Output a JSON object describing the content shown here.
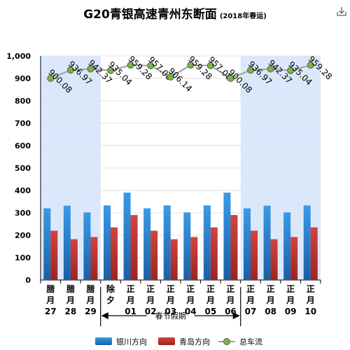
{
  "title": "G20青银高速青州东断面",
  "subtitle": "(2018年春运)",
  "chart_data": {
    "type": "bar",
    "categories": [
      [
        "腊",
        "月",
        "27"
      ],
      [
        "腊",
        "月",
        "28"
      ],
      [
        "腊",
        "月",
        "29"
      ],
      [
        "除",
        "夕"
      ],
      [
        "正",
        "月",
        "01"
      ],
      [
        "正",
        "月",
        "02"
      ],
      [
        "正",
        "月",
        "03"
      ],
      [
        "正",
        "月",
        "04"
      ],
      [
        "正",
        "月",
        "05"
      ],
      [
        "正",
        "月",
        "06"
      ],
      [
        "正",
        "月",
        "07"
      ],
      [
        "正",
        "月",
        "08"
      ],
      [
        "正",
        "月",
        "09"
      ],
      [
        "正",
        "月",
        "10"
      ]
    ],
    "series": [
      {
        "name": "银川方向",
        "type": "bar",
        "color": "#2a7fd0",
        "values": [
          320,
          332,
          302,
          333,
          390,
          320,
          333,
          302,
          333,
          390,
          320,
          332,
          302,
          333
        ]
      },
      {
        "name": "青岛方向",
        "type": "bar",
        "color": "#c23531",
        "values": [
          220,
          182,
          192,
          235,
          290,
          220,
          182,
          192,
          235,
          290,
          220,
          182,
          192,
          235
        ]
      },
      {
        "name": "总车流",
        "type": "line",
        "color": "#a0a0a0",
        "marker_color": "#7cb342",
        "values": [
          900.08,
          936.97,
          942.37,
          935.04,
          959.28,
          957.08,
          906.14,
          959.28,
          957.08,
          900.08,
          936.97,
          942.37,
          935.04,
          959.28
        ],
        "labels": [
          "900.08",
          "936.97",
          "942.37",
          "935.04",
          "959.28",
          "957.08",
          "906.14",
          "959.28",
          "957.08",
          "900.08",
          "936.97",
          "942.37",
          "935.04",
          "959.28"
        ]
      }
    ],
    "ylim": [
      0,
      1000
    ],
    "yticks": [
      "0",
      "100",
      "200",
      "300",
      "400",
      "500",
      "600",
      "700",
      "800",
      "900",
      "1,000"
    ],
    "shaded_categories": [
      [
        0,
        2
      ],
      [
        10,
        13
      ]
    ],
    "shade_color": "#dbe8fb",
    "annotation": {
      "text": "春节假期",
      "from_category": 3,
      "to_category": 9
    },
    "grid": true,
    "legend_position": "bottom"
  }
}
